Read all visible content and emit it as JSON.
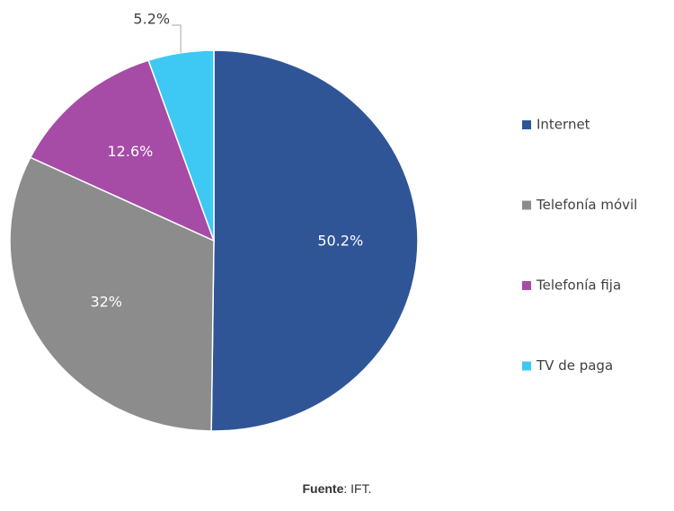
{
  "chart_data": {
    "type": "pie",
    "categories": [
      "Internet",
      "Telefonía móvil",
      "Telefonía fija",
      "TV de paga"
    ],
    "values": [
      50.2,
      32,
      12.6,
      5.2
    ],
    "value_labels": [
      "50.2%",
      "32%",
      "12.6%",
      "5.2%"
    ],
    "colors": [
      "#2f5597",
      "#8c8c8c",
      "#a64ca6",
      "#3ec9f5"
    ],
    "legend": "right",
    "source_label": "Fuente",
    "source_text": ": IFT."
  }
}
